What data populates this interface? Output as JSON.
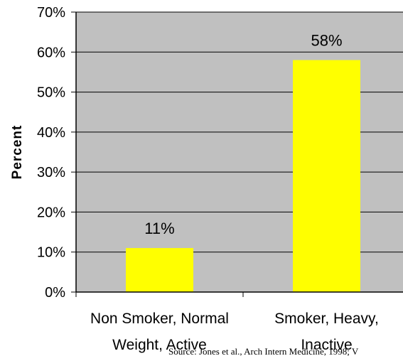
{
  "chart_data": {
    "type": "bar",
    "categories": [
      [
        "Non Smoker, Normal",
        "Weight, Active"
      ],
      [
        "Smoker, Heavy,",
        "Inactive"
      ]
    ],
    "values": [
      11,
      58
    ],
    "data_labels": [
      "11%",
      "58%"
    ],
    "ylabel": "Percent",
    "ylim": [
      0,
      70
    ],
    "yticks": [
      0,
      10,
      20,
      30,
      40,
      50,
      60,
      70
    ],
    "ytick_labels": [
      "0%",
      "10%",
      "20%",
      "30%",
      "40%",
      "50%",
      "60%",
      "70%"
    ],
    "grid": true,
    "legend": "none",
    "source": "Source: Jones et al., Arch Intern Medicine, 1998; V",
    "colors": {
      "bar": "#ffff00",
      "plot_background": "#c0c0c0",
      "gridline": "#000000",
      "axis": "#000000"
    }
  }
}
